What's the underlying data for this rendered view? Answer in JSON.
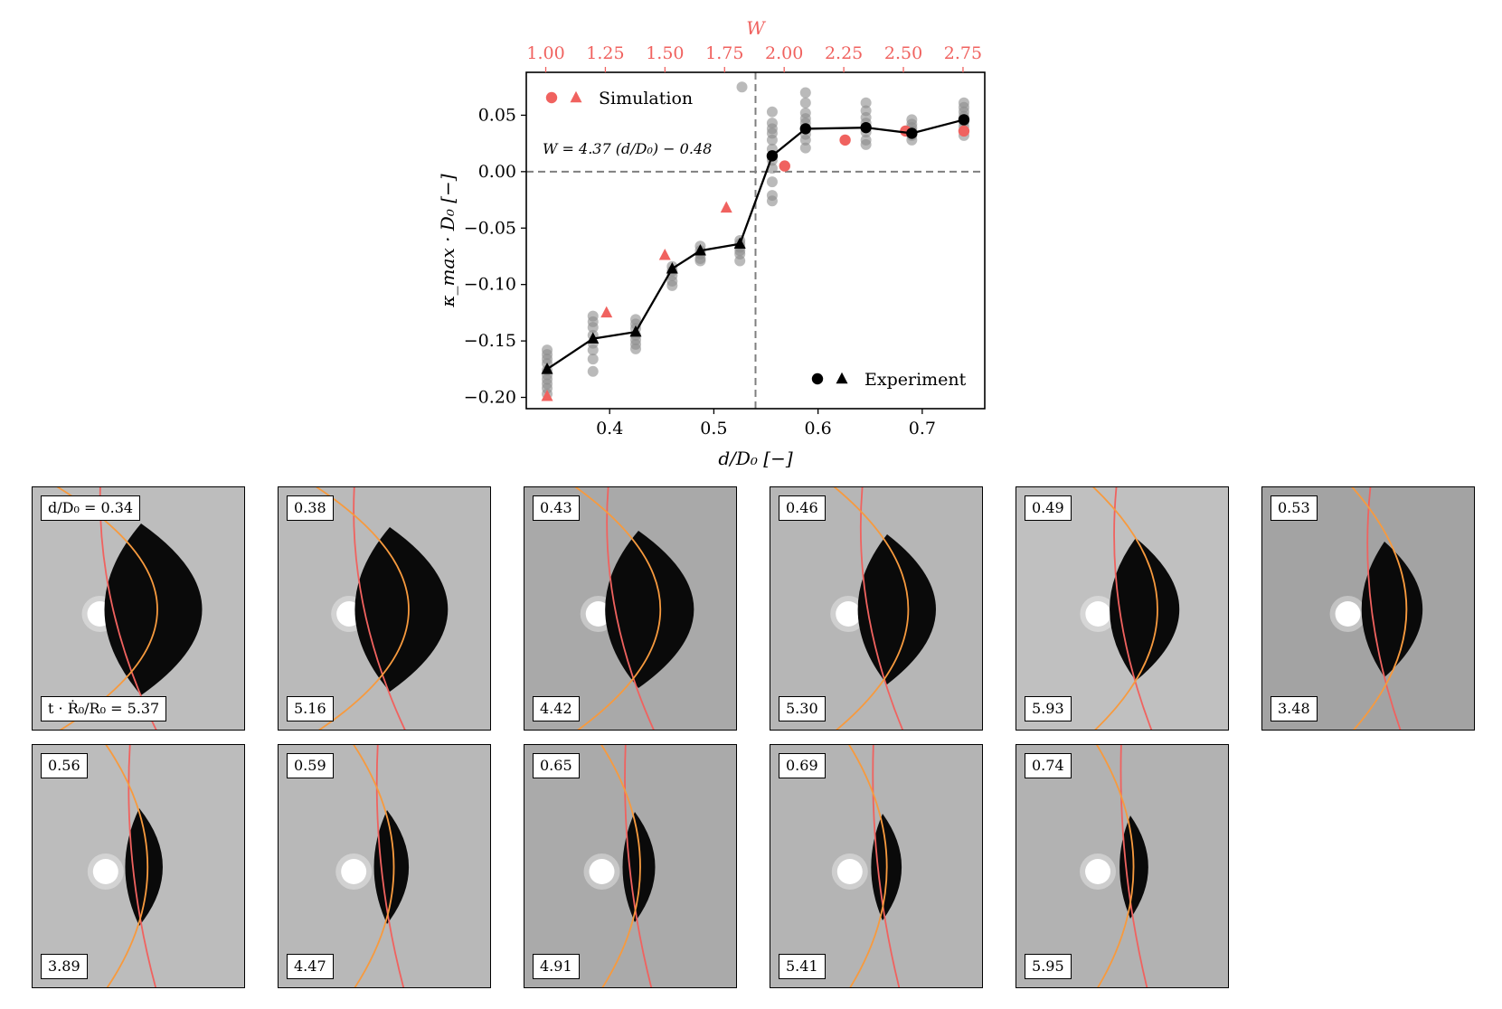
{
  "chart_data": {
    "type": "scatter",
    "xlabel": "d/D₀ [−]",
    "ylabel": "κ_max · D₀ [−]",
    "top_axis_label": "W",
    "xlim": [
      0.32,
      0.76
    ],
    "ylim": [
      -0.21,
      0.088
    ],
    "x_ticks": [
      0.4,
      0.5,
      0.6,
      0.7
    ],
    "x_tick_labels": [
      "0.4",
      "0.5",
      "0.6",
      "0.7"
    ],
    "y_ticks": [
      0.05,
      0.0,
      -0.05,
      -0.1,
      -0.15,
      -0.2
    ],
    "y_tick_labels": [
      "0.05",
      "0.00",
      "−0.05",
      "−0.10",
      "−0.15",
      "−0.20"
    ],
    "top_ticks": [
      1.0,
      1.25,
      1.5,
      1.75,
      2.0,
      2.25,
      2.5,
      2.75
    ],
    "top_tick_labels": [
      "1.00",
      "1.25",
      "1.50",
      "1.75",
      "2.00",
      "2.25",
      "2.50",
      "2.75"
    ],
    "fit_text": "W = 4.37 (d/D₀) − 0.48",
    "vline_x": 0.54,
    "hline_y": 0.0,
    "experiment_mean": {
      "name": "Experiment",
      "x": [
        0.34,
        0.384,
        0.425,
        0.46,
        0.487,
        0.525,
        0.556,
        0.588,
        0.646,
        0.69,
        0.74
      ],
      "y": [
        -0.175,
        -0.148,
        -0.142,
        -0.086,
        -0.07,
        -0.064,
        0.014,
        0.038,
        0.039,
        0.034,
        0.046
      ],
      "marker": [
        "triangle",
        "triangle",
        "triangle",
        "triangle",
        "triangle",
        "triangle",
        "circle",
        "circle",
        "circle",
        "circle",
        "circle"
      ]
    },
    "experiment_raw": {
      "x": [
        0.34,
        0.34,
        0.34,
        0.34,
        0.34,
        0.34,
        0.34,
        0.34,
        0.34,
        0.34,
        0.384,
        0.384,
        0.384,
        0.384,
        0.384,
        0.384,
        0.384,
        0.384,
        0.425,
        0.425,
        0.425,
        0.425,
        0.425,
        0.425,
        0.425,
        0.46,
        0.46,
        0.46,
        0.46,
        0.46,
        0.487,
        0.487,
        0.487,
        0.487,
        0.487,
        0.525,
        0.525,
        0.525,
        0.525,
        0.525,
        0.525,
        0.527,
        0.556,
        0.556,
        0.556,
        0.556,
        0.556,
        0.556,
        0.556,
        0.556,
        0.556,
        0.556,
        0.556,
        0.588,
        0.588,
        0.588,
        0.588,
        0.588,
        0.588,
        0.588,
        0.588,
        0.588,
        0.646,
        0.646,
        0.646,
        0.646,
        0.646,
        0.646,
        0.646,
        0.646,
        0.69,
        0.69,
        0.69,
        0.69,
        0.69,
        0.69,
        0.74,
        0.74,
        0.74,
        0.74,
        0.74,
        0.74,
        0.74,
        0.74
      ],
      "y": [
        -0.158,
        -0.162,
        -0.166,
        -0.17,
        -0.176,
        -0.18,
        -0.184,
        -0.188,
        -0.192,
        -0.197,
        -0.128,
        -0.133,
        -0.138,
        -0.145,
        -0.152,
        -0.158,
        -0.166,
        -0.177,
        -0.131,
        -0.135,
        -0.139,
        -0.145,
        -0.149,
        -0.153,
        -0.157,
        -0.084,
        -0.088,
        -0.092,
        -0.097,
        -0.101,
        -0.066,
        -0.07,
        -0.073,
        -0.077,
        -0.079,
        -0.061,
        -0.064,
        -0.067,
        -0.07,
        -0.073,
        -0.079,
        0.075,
        0.053,
        0.043,
        0.038,
        0.034,
        0.028,
        0.02,
        0.01,
        0.003,
        -0.009,
        -0.021,
        -0.026,
        0.07,
        0.061,
        0.052,
        0.047,
        0.043,
        0.038,
        0.033,
        0.028,
        0.021,
        0.061,
        0.054,
        0.048,
        0.043,
        0.039,
        0.035,
        0.028,
        0.024,
        0.046,
        0.042,
        0.039,
        0.036,
        0.032,
        0.028,
        0.061,
        0.057,
        0.053,
        0.049,
        0.044,
        0.04,
        0.036,
        0.032
      ]
    },
    "simulation": {
      "name": "Simulation",
      "x": [
        0.34,
        0.397,
        0.453,
        0.512,
        0.568,
        0.626,
        0.684,
        0.74
      ],
      "y": [
        -0.199,
        -0.125,
        -0.074,
        -0.032,
        0.005,
        0.028,
        0.036,
        0.036
      ],
      "marker": [
        "triangle",
        "triangle",
        "triangle",
        "triangle",
        "circle",
        "circle",
        "circle",
        "circle"
      ]
    },
    "legend": [
      {
        "label": "Simulation",
        "placement": "top-left"
      },
      {
        "label": "Experiment",
        "placement": "bottom-right"
      }
    ],
    "colors": {
      "simulation": "#f0625f",
      "experiment": "#000000",
      "raw": "#8c8c8c",
      "guide": "#7f7f7f",
      "top_axis": "#f0625f"
    }
  },
  "panels": [
    {
      "d": "d/D₀ = 0.34",
      "t": "t · Ṙ₀/R₀ = 5.37",
      "bg": "#bdbdbd",
      "R": 1.0
    },
    {
      "d": "0.38",
      "t": "5.16",
      "bg": "#bababa",
      "R": 1.05
    },
    {
      "d": "0.43",
      "t": "4.42",
      "bg": "#a9a9a9",
      "R": 1.1
    },
    {
      "d": "0.46",
      "t": "5.30",
      "bg": "#b6b6b6",
      "R": 1.25
    },
    {
      "d": "0.49",
      "t": "5.93",
      "bg": "#c0c0c0",
      "R": 1.4
    },
    {
      "d": "0.53",
      "t": "3.48",
      "bg": "#a3a3a3",
      "R": 1.6
    },
    {
      "d": "0.56",
      "t": "3.89",
      "bg": "#bcbcbc",
      "R": 2.6
    },
    {
      "d": "0.59",
      "t": "4.47",
      "bg": "#b8b8b8",
      "R": 2.8
    },
    {
      "d": "0.65",
      "t": "4.91",
      "bg": "#aaaaaa",
      "R": 3.0
    },
    {
      "d": "0.69",
      "t": "5.41",
      "bg": "#b4b4b4",
      "R": 3.2
    },
    {
      "d": "0.74",
      "t": "5.95",
      "bg": "#b2b2b2",
      "R": 3.4
    }
  ]
}
